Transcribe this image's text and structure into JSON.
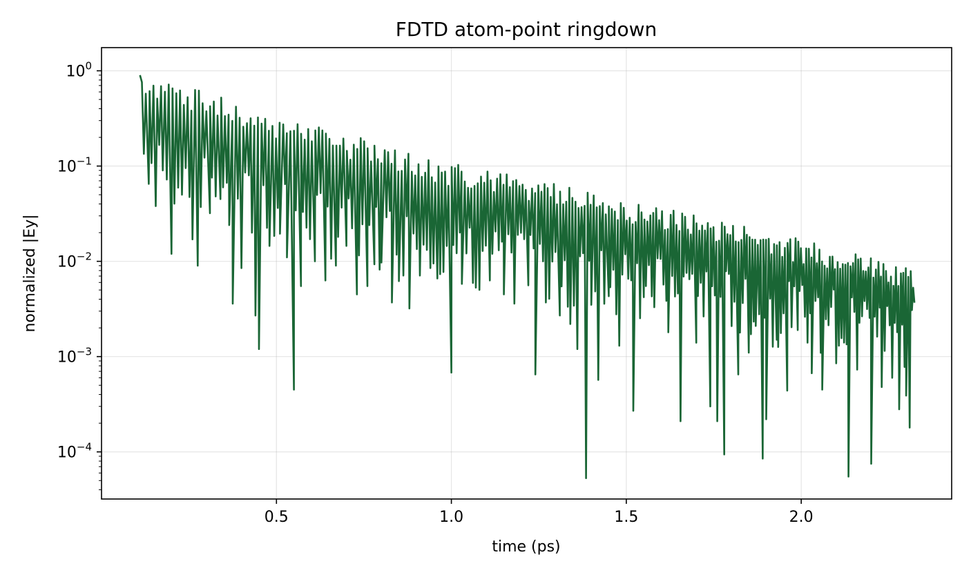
{
  "chart_data": {
    "type": "line",
    "title": "FDTD atom-point ringdown",
    "xlabel": "time (ps)",
    "ylabel": "normalized |Ey|",
    "xlim": [
      0.0,
      2.43
    ],
    "ylim": [
      3.2e-05,
      1.75
    ],
    "yscale": "log",
    "grid": true,
    "x_ticks": [
      {
        "value": 0.5,
        "label": "0.5"
      },
      {
        "value": 1.0,
        "label": "1.0"
      },
      {
        "value": 1.5,
        "label": "1.5"
      },
      {
        "value": 2.0,
        "label": "2.0"
      }
    ],
    "y_ticks": [
      {
        "value": 1,
        "base": "10",
        "exp": "0"
      },
      {
        "value": 0.1,
        "base": "10",
        "exp": "−1"
      },
      {
        "value": 0.01,
        "base": "10",
        "exp": "−2"
      },
      {
        "value": 0.001,
        "base": "10",
        "exp": "−3"
      },
      {
        "value": 0.0001,
        "base": "10",
        "exp": "−4"
      }
    ],
    "series": [
      {
        "color": "#1a6635",
        "x_start": 0.11,
        "x_end": 2.32,
        "envelope_peaks": [
          [
            0.11,
            1.0
          ],
          [
            0.5,
            0.34
          ],
          [
            1.0,
            0.11
          ],
          [
            1.5,
            0.045
          ],
          [
            2.0,
            0.017
          ],
          [
            2.32,
            0.009
          ]
        ],
        "upper_floor": [
          [
            0.11,
            0.16
          ],
          [
            0.5,
            0.052
          ],
          [
            1.0,
            0.02
          ],
          [
            1.5,
            0.0095
          ],
          [
            2.0,
            0.0045
          ],
          [
            2.32,
            0.0028
          ]
        ],
        "deep_minima": [
          [
            0.135,
            0.065
          ],
          [
            0.155,
            0.038
          ],
          [
            0.175,
            0.09
          ],
          [
            0.2,
            0.012
          ],
          [
            0.23,
            0.05
          ],
          [
            0.26,
            0.017
          ],
          [
            0.275,
            0.009
          ],
          [
            0.31,
            0.032
          ],
          [
            0.34,
            0.045
          ],
          [
            0.365,
            0.024
          ],
          [
            0.375,
            0.0036
          ],
          [
            0.4,
            0.0085
          ],
          [
            0.43,
            0.02
          ],
          [
            0.44,
            0.0027
          ],
          [
            0.45,
            0.0012
          ],
          [
            0.48,
            0.0145
          ],
          [
            0.51,
            0.0195
          ],
          [
            0.53,
            0.011
          ],
          [
            0.55,
            0.00045
          ],
          [
            0.57,
            0.0055
          ],
          [
            0.61,
            0.01
          ],
          [
            0.64,
            0.0063
          ],
          [
            0.67,
            0.009
          ],
          [
            0.7,
            0.0145
          ],
          [
            0.73,
            0.0045
          ],
          [
            0.76,
            0.0055
          ],
          [
            0.78,
            0.0093
          ],
          [
            0.8,
            0.0097
          ],
          [
            0.83,
            0.0037
          ],
          [
            0.85,
            0.0062
          ],
          [
            0.88,
            0.0032
          ],
          [
            0.91,
            0.0071
          ],
          [
            0.94,
            0.0085
          ],
          [
            0.96,
            0.0066
          ],
          [
            1.0,
            0.00068
          ],
          [
            1.03,
            0.0058
          ],
          [
            1.07,
            0.0053
          ],
          [
            1.11,
            0.0063
          ],
          [
            1.15,
            0.0045
          ],
          [
            1.18,
            0.0036
          ],
          [
            1.22,
            0.0056
          ],
          [
            1.24,
            0.00065
          ],
          [
            1.27,
            0.0037
          ],
          [
            1.31,
            0.0027
          ],
          [
            1.34,
            0.0022
          ],
          [
            1.36,
            0.0012
          ],
          [
            1.385,
            5.3e-05
          ],
          [
            1.4,
            0.0035
          ],
          [
            1.42,
            0.00057
          ],
          [
            1.45,
            0.0043
          ],
          [
            1.48,
            0.0013
          ],
          [
            1.52,
            0.00027
          ],
          [
            1.55,
            0.0042
          ],
          [
            1.58,
            0.0033
          ],
          [
            1.62,
            0.0018
          ],
          [
            1.655,
            0.00021
          ],
          [
            1.7,
            0.0014
          ],
          [
            1.74,
            0.0003
          ],
          [
            1.76,
            0.00021
          ],
          [
            1.78,
            9.4e-05
          ],
          [
            1.82,
            0.00065
          ],
          [
            1.85,
            0.0011
          ],
          [
            1.87,
            0.0021
          ],
          [
            1.89,
            8.5e-05
          ],
          [
            1.9,
            0.00022
          ],
          [
            1.93,
            0.0015
          ],
          [
            1.96,
            0.00044
          ],
          [
            1.99,
            0.0019
          ],
          [
            2.03,
            0.00067
          ],
          [
            2.06,
            0.00045
          ],
          [
            2.1,
            0.00085
          ],
          [
            2.135,
            5.5e-05
          ],
          [
            2.16,
            0.00073
          ],
          [
            2.2,
            7.5e-05
          ],
          [
            2.23,
            0.00048
          ],
          [
            2.26,
            0.0006
          ],
          [
            2.28,
            0.00028
          ],
          [
            2.3,
            0.00039
          ],
          [
            2.31,
            0.00018
          ]
        ]
      }
    ]
  }
}
